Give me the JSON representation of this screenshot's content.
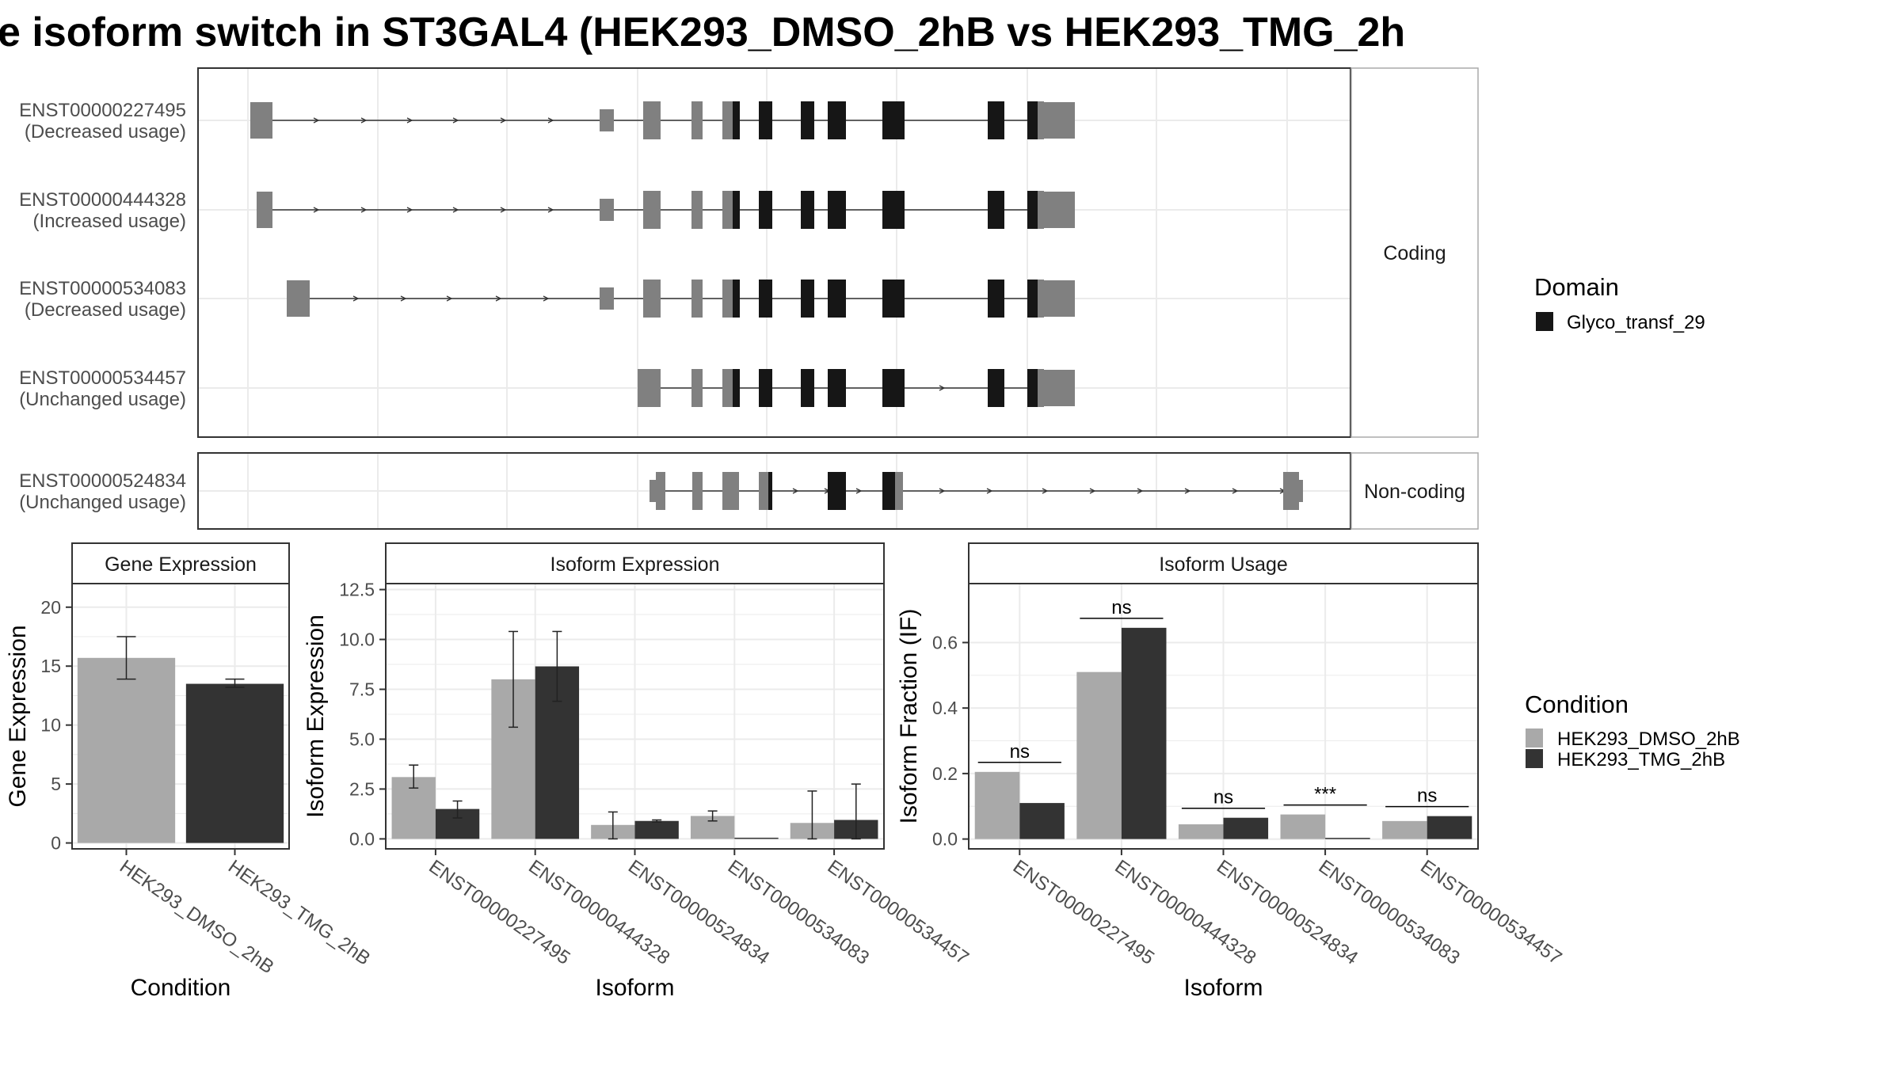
{
  "title": "e isoform switch in ST3GAL4 (HEK293_DMSO_2hB vs HEK293_TMG_2h",
  "colors": {
    "utr": "#808080",
    "domain": "#161616",
    "dmso": "#a9a9a9",
    "tmg": "#333333",
    "grid": "#ebebeb",
    "strip_border": "#aaaaaa"
  },
  "structure": {
    "facets": [
      "Coding",
      "Non-coding"
    ],
    "isoforms": [
      {
        "id": "ENST00000227495",
        "usage": "(Decreased usage)",
        "group": "Coding"
      },
      {
        "id": "ENST00000444328",
        "usage": "(Increased usage)",
        "group": "Coding"
      },
      {
        "id": "ENST00000534083",
        "usage": "(Decreased usage)",
        "group": "Coding"
      },
      {
        "id": "ENST00000534457",
        "usage": "(Unchanged usage)",
        "group": "Coding"
      },
      {
        "id": "ENST00000524834",
        "usage": "(Unchanged usage)",
        "group": "Non-coding"
      }
    ]
  },
  "legend_domain": {
    "title": "Domain",
    "items": [
      {
        "label": "Glyco_transf_29",
        "color": "#161616"
      }
    ]
  },
  "legend_condition": {
    "title": "Condition",
    "items": [
      {
        "label": "HEK293_DMSO_2hB",
        "color": "#a9a9a9"
      },
      {
        "label": "HEK293_TMG_2hB",
        "color": "#333333"
      }
    ]
  },
  "chart_data": [
    {
      "type": "bar",
      "panel_title": "Gene Expression",
      "xlabel": "Condition",
      "ylabel": "Gene Expression",
      "categories": [
        "HEK293_DMSO_2hB",
        "HEK293_TMG_2hB"
      ],
      "values": [
        15.7,
        13.5
      ],
      "error_low": [
        13.9,
        13.2
      ],
      "error_high": [
        17.5,
        13.9
      ],
      "ylim": [
        -0.5,
        22
      ],
      "yticks": [
        0,
        5,
        10,
        15,
        20
      ],
      "ytick_labels": [
        "0",
        "5",
        "10",
        "15",
        "20"
      ]
    },
    {
      "type": "bar",
      "panel_title": "Isoform Expression",
      "xlabel": "Isoform",
      "ylabel": "Isoform Expression",
      "categories": [
        "ENST00000227495",
        "ENST00000444328",
        "ENST00000524834",
        "ENST00000534083",
        "ENST00000534457"
      ],
      "series": [
        {
          "name": "HEK293_DMSO_2hB",
          "values": [
            3.1,
            8.0,
            0.7,
            1.15,
            0.8
          ],
          "error_low": [
            2.55,
            5.6,
            0.0,
            0.9,
            0.0
          ],
          "error_high": [
            3.7,
            10.4,
            1.35,
            1.4,
            2.4
          ]
        },
        {
          "name": "HEK293_TMG_2hB",
          "values": [
            1.5,
            8.65,
            0.9,
            0.0,
            0.95
          ],
          "error_low": [
            1.05,
            6.9,
            0.85,
            0.0,
            0.0
          ],
          "error_high": [
            1.9,
            10.4,
            0.95,
            0.0,
            2.75
          ]
        }
      ],
      "ylim": [
        -0.5,
        12.8
      ],
      "yticks": [
        0,
        2.5,
        5,
        7.5,
        10,
        12.5
      ],
      "ytick_labels": [
        "0.0",
        "2.5",
        "5.0",
        "7.5",
        "10.0",
        "12.5"
      ]
    },
    {
      "type": "bar",
      "panel_title": "Isoform Usage",
      "xlabel": "Isoform",
      "ylabel": "Isoform Fraction (IF)",
      "categories": [
        "ENST00000227495",
        "ENST00000444328",
        "ENST00000524834",
        "ENST00000534083",
        "ENST00000534457"
      ],
      "series": [
        {
          "name": "HEK293_DMSO_2hB",
          "values": [
            0.205,
            0.51,
            0.045,
            0.075,
            0.055
          ]
        },
        {
          "name": "HEK293_TMG_2hB",
          "values": [
            0.11,
            0.645,
            0.065,
            0.0,
            0.07
          ]
        }
      ],
      "significance": [
        "ns",
        "ns",
        "ns",
        "***",
        "ns"
      ],
      "ylim": [
        -0.03,
        0.78
      ],
      "yticks": [
        0,
        0.2,
        0.4,
        0.6
      ],
      "ytick_labels": [
        "0.0",
        "0.2",
        "0.4",
        "0.6"
      ]
    }
  ]
}
